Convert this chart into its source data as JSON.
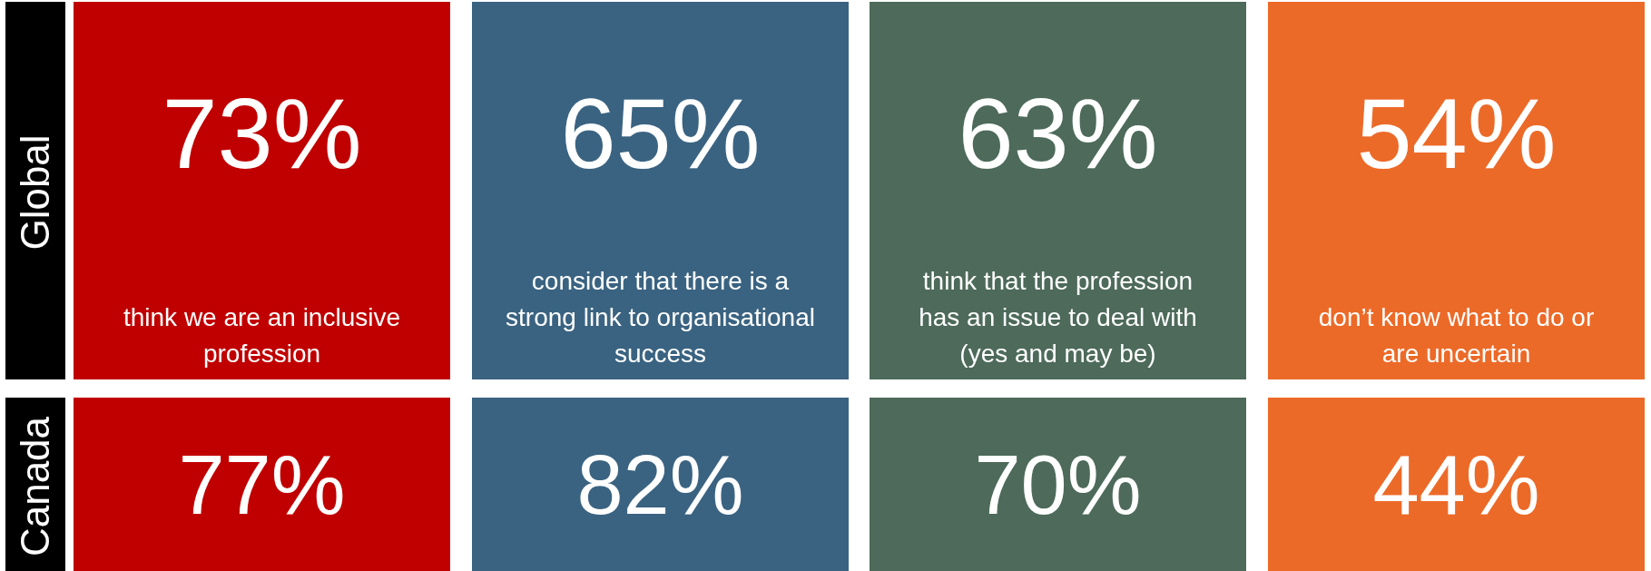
{
  "chart_data": {
    "type": "other",
    "categories": [
      "think we are an inclusive profession",
      "consider that there is a strong link to organisational success",
      "think that the profession has an issue to deal with (yes and may be)",
      "don’t know what to do or are uncertain"
    ],
    "series": [
      {
        "name": "Global",
        "values": [
          73,
          65,
          63,
          54
        ],
        "value_labels": [
          "73%",
          "65%",
          "63%",
          "54%"
        ],
        "colors": [
          "#c00000",
          "#3a6381",
          "#4d6a5a",
          "#ec6a28"
        ]
      },
      {
        "name": "Canada",
        "values": [
          77,
          82,
          70,
          44
        ],
        "value_labels": [
          "77%",
          "82%",
          "70%",
          "44%"
        ],
        "colors": [
          "#c00000",
          "#3a6381",
          "#4d6a5a",
          "#ec6a28"
        ]
      }
    ]
  }
}
